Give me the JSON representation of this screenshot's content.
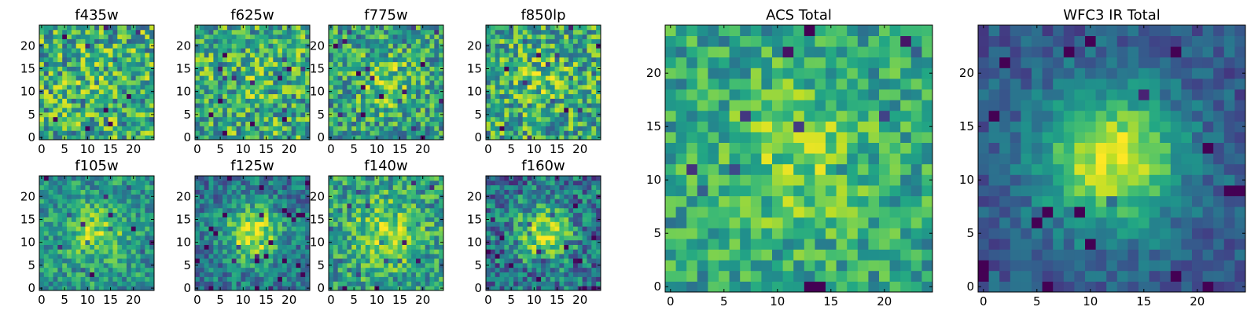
{
  "chart_data": [
    {
      "type": "heatmap",
      "title": "f435w",
      "colormap": "viridis",
      "grid": false,
      "ylim": [
        0,
        25
      ],
      "xlim": [
        0,
        25
      ],
      "x_ticks": [
        0,
        5,
        10,
        15,
        20
      ],
      "y_ticks": [
        0,
        5,
        10,
        15,
        20
      ],
      "pixel_grid": [
        25,
        25
      ],
      "noise": 0.34,
      "source_sigma": 4,
      "source_strength": 0.05,
      "baseline": 0.62,
      "seed": 11
    },
    {
      "type": "heatmap",
      "title": "f625w",
      "colormap": "viridis",
      "grid": false,
      "ylim": [
        0,
        25
      ],
      "xlim": [
        0,
        25
      ],
      "x_ticks": [
        0,
        5,
        10,
        15,
        20
      ],
      "y_ticks": [
        0,
        5,
        10,
        15,
        20
      ],
      "pixel_grid": [
        25,
        25
      ],
      "noise": 0.32,
      "source_sigma": 4,
      "source_strength": 0.05,
      "baseline": 0.62,
      "seed": 23
    },
    {
      "type": "heatmap",
      "title": "f775w",
      "colormap": "viridis",
      "grid": false,
      "ylim": [
        0,
        25
      ],
      "xlim": [
        0,
        25
      ],
      "x_ticks": [
        0,
        5,
        10,
        15,
        20
      ],
      "y_ticks": [
        0,
        5,
        10,
        15,
        20
      ],
      "pixel_grid": [
        25,
        25
      ],
      "noise": 0.3,
      "source_sigma": 4.5,
      "source_strength": 0.22,
      "baseline": 0.56,
      "seed": 37
    },
    {
      "type": "heatmap",
      "title": "f850lp",
      "colormap": "viridis",
      "grid": false,
      "ylim": [
        0,
        25
      ],
      "xlim": [
        0,
        25
      ],
      "x_ticks": [
        0,
        5,
        10,
        15,
        20
      ],
      "y_ticks": [
        0,
        5,
        10,
        15,
        20
      ],
      "pixel_grid": [
        25,
        25
      ],
      "noise": 0.32,
      "source_sigma": 4.5,
      "source_strength": 0.12,
      "baseline": 0.6,
      "seed": 41
    },
    {
      "type": "heatmap",
      "title": "f105w",
      "colormap": "viridis",
      "grid": false,
      "ylim": [
        0,
        25
      ],
      "xlim": [
        0,
        25
      ],
      "x_ticks": [
        0,
        5,
        10,
        15,
        20
      ],
      "y_ticks": [
        0,
        5,
        10,
        15,
        20
      ],
      "pixel_grid": [
        25,
        25
      ],
      "noise": 0.22,
      "source_sigma": 4.5,
      "source_strength": 0.3,
      "baseline": 0.52,
      "seed": 53
    },
    {
      "type": "heatmap",
      "title": "f125w",
      "colormap": "viridis",
      "grid": false,
      "ylim": [
        0,
        25
      ],
      "xlim": [
        0,
        25
      ],
      "x_ticks": [
        0,
        5,
        10,
        15,
        20
      ],
      "y_ticks": [
        0,
        5,
        10,
        15,
        20
      ],
      "pixel_grid": [
        25,
        25
      ],
      "noise": 0.22,
      "source_sigma": 4.2,
      "source_strength": 0.55,
      "baseline": 0.4,
      "seed": 67
    },
    {
      "type": "heatmap",
      "title": "f140w",
      "colormap": "viridis",
      "grid": false,
      "ylim": [
        0,
        25
      ],
      "xlim": [
        0,
        25
      ],
      "x_ticks": [
        0,
        5,
        10,
        15,
        20
      ],
      "y_ticks": [
        0,
        5,
        10,
        15,
        20
      ],
      "pixel_grid": [
        25,
        25
      ],
      "noise": 0.26,
      "source_sigma": 4.8,
      "source_strength": 0.3,
      "baseline": 0.56,
      "seed": 79
    },
    {
      "type": "heatmap",
      "title": "f160w",
      "colormap": "viridis",
      "grid": false,
      "ylim": [
        0,
        25
      ],
      "xlim": [
        0,
        25
      ],
      "x_ticks": [
        0,
        5,
        10,
        15,
        20
      ],
      "y_ticks": [
        0,
        5,
        10,
        15,
        20
      ],
      "pixel_grid": [
        25,
        25
      ],
      "noise": 0.28,
      "source_sigma": 4.2,
      "source_strength": 0.5,
      "baseline": 0.38,
      "seed": 83
    },
    {
      "type": "heatmap",
      "title": "ACS Total",
      "colormap": "viridis",
      "grid": false,
      "ylim": [
        0,
        25
      ],
      "xlim": [
        0,
        25
      ],
      "x_ticks": [
        0,
        5,
        10,
        15,
        20
      ],
      "y_ticks": [
        0,
        5,
        10,
        15,
        20
      ],
      "pixel_grid": [
        25,
        25
      ],
      "noise": 0.22,
      "source_sigma": 5,
      "source_strength": 0.22,
      "baseline": 0.58,
      "seed": 97
    },
    {
      "type": "heatmap",
      "title": "WFC3 IR Total",
      "colormap": "viridis",
      "grid": false,
      "ylim": [
        0,
        25
      ],
      "xlim": [
        0,
        25
      ],
      "x_ticks": [
        0,
        5,
        10,
        15,
        20
      ],
      "y_ticks": [
        0,
        5,
        10,
        15,
        20
      ],
      "pixel_grid": [
        25,
        25
      ],
      "noise": 0.13,
      "source_sigma": 4.6,
      "source_strength": 0.68,
      "baseline": 0.28,
      "seed": 101
    }
  ]
}
